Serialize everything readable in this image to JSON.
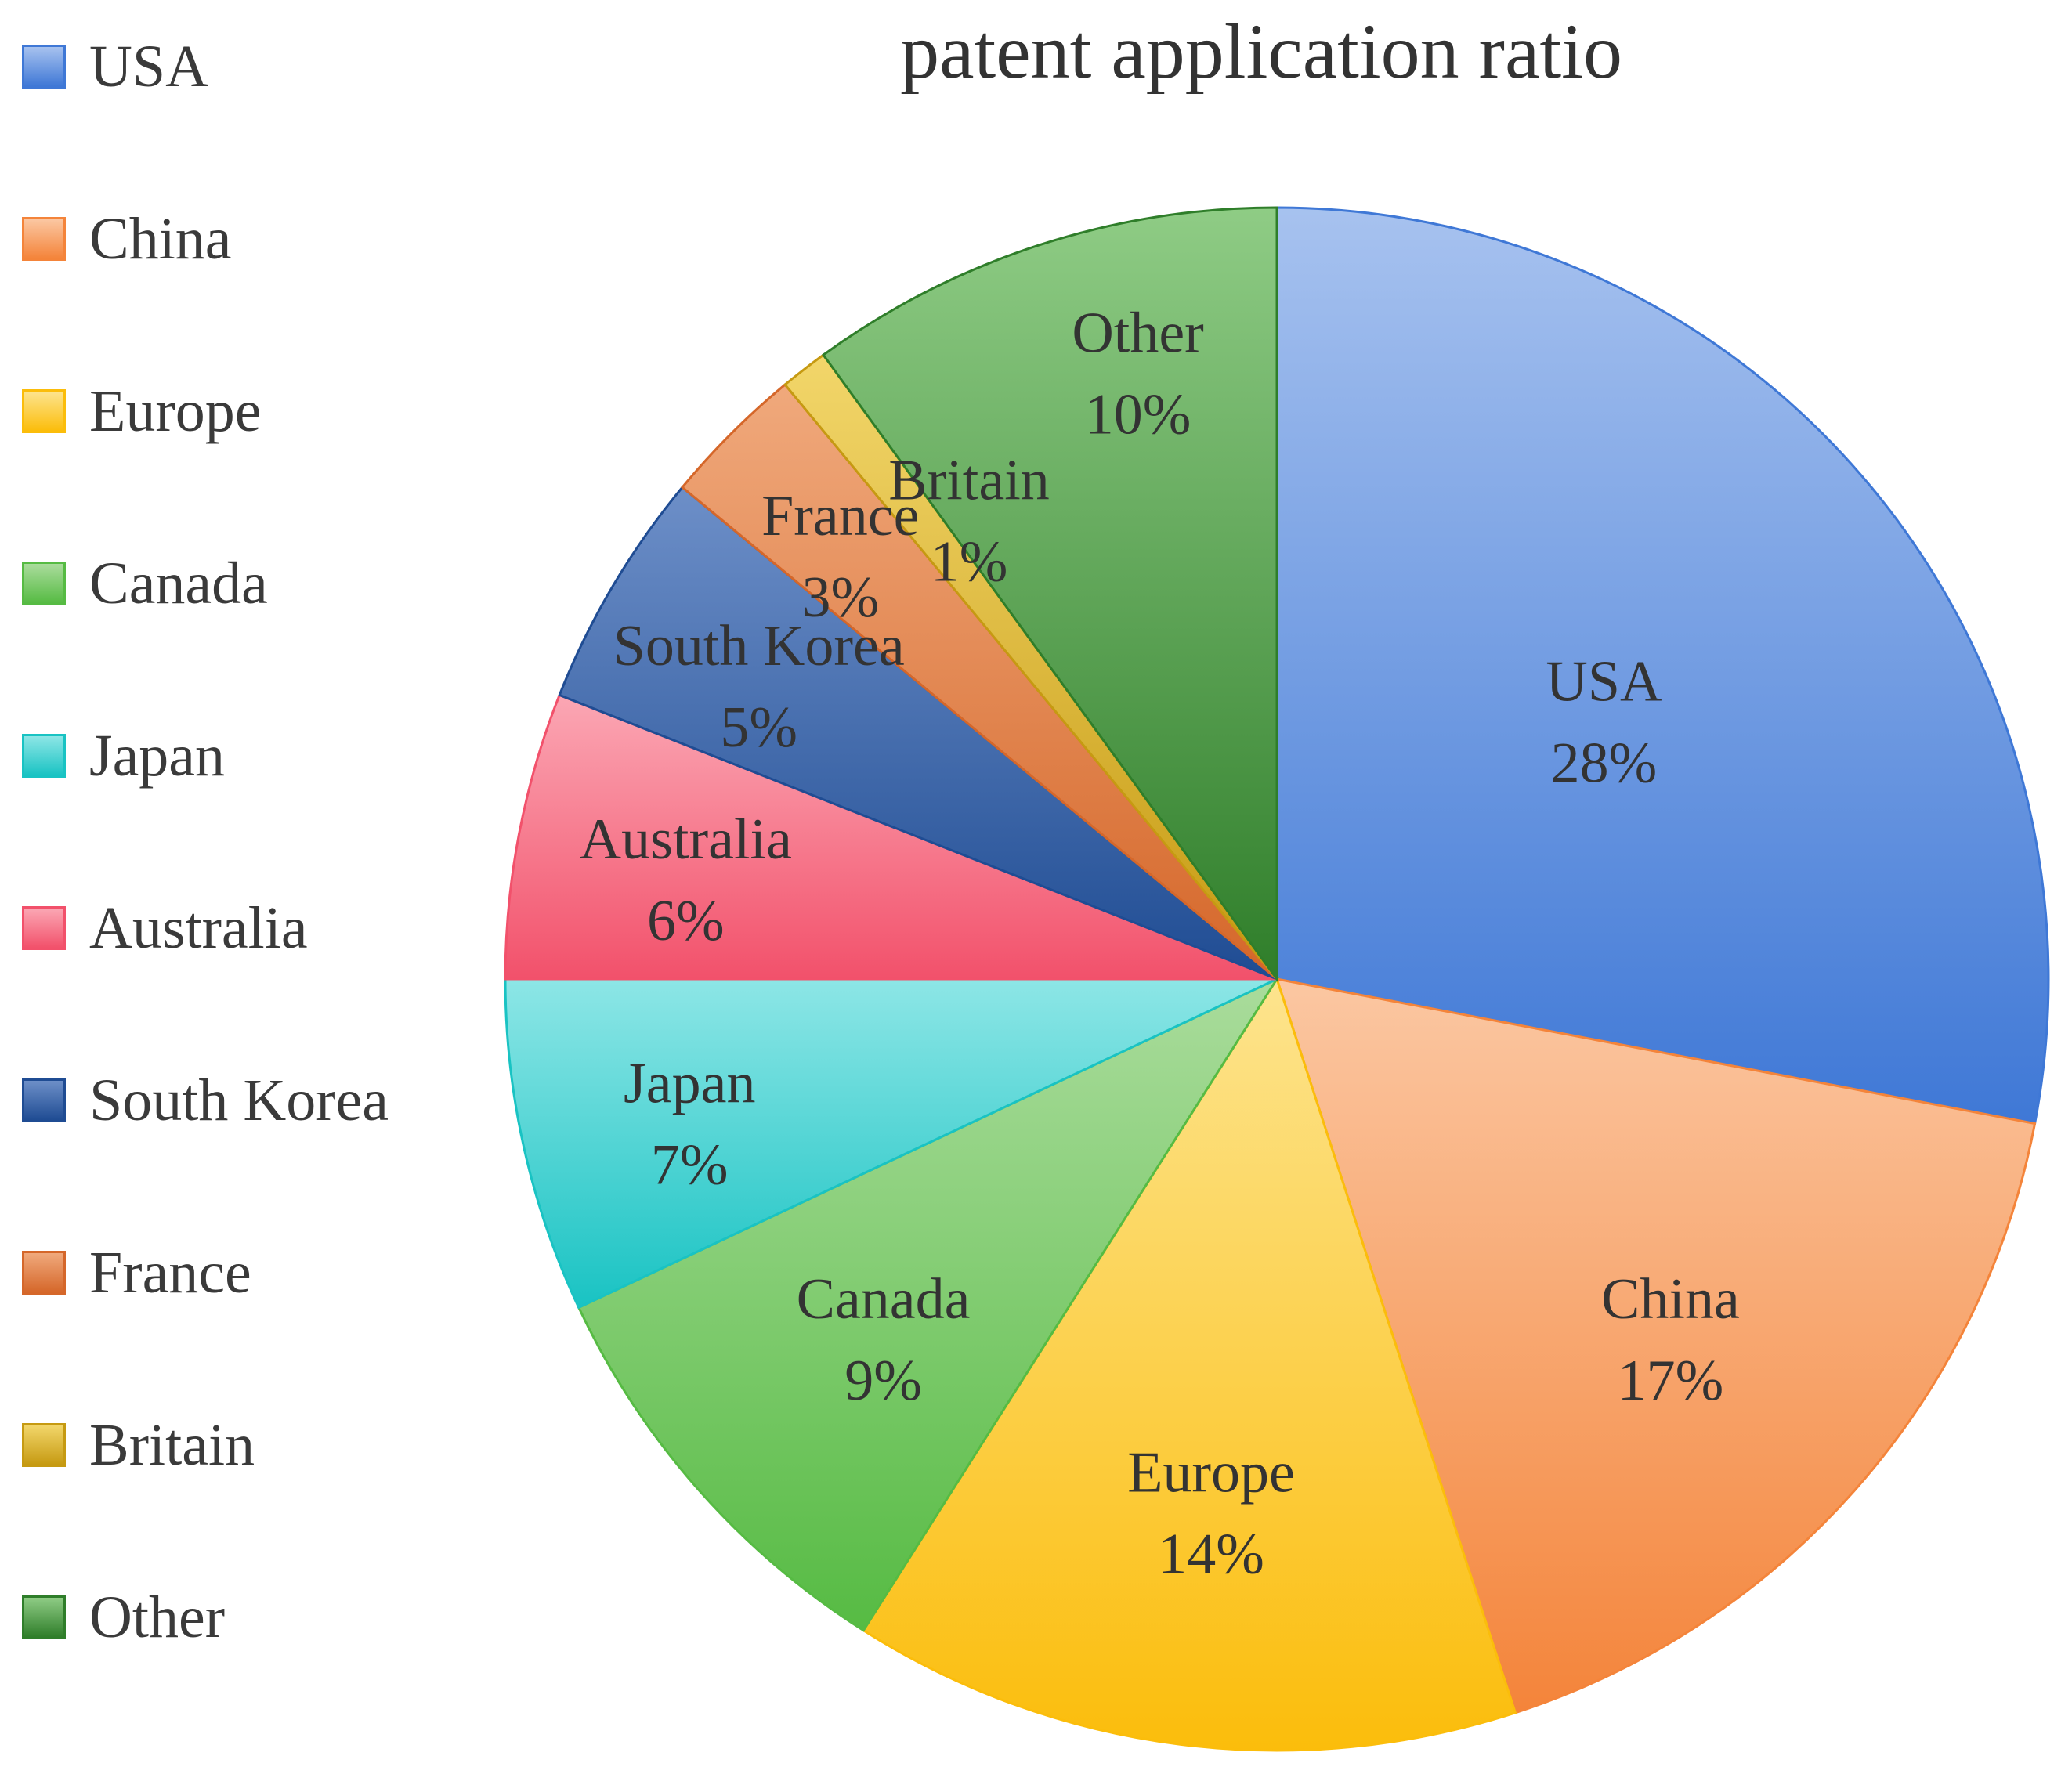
{
  "chart_data": {
    "type": "pie",
    "title": "patent application ratio",
    "legend_position": "left",
    "start_angle_deg": 0,
    "direction": "clockwise",
    "slices": [
      {
        "label": "USA",
        "value": 28,
        "display": "28%",
        "color": "#3f78d6",
        "color_light": "#a7c2ef"
      },
      {
        "label": "China",
        "value": 17,
        "display": "17%",
        "color": "#f4843a",
        "color_light": "#fbc7a2"
      },
      {
        "label": "Europe",
        "value": 14,
        "display": "14%",
        "color": "#fbbd0b",
        "color_light": "#fde48e"
      },
      {
        "label": "Canada",
        "value": 9,
        "display": "9%",
        "color": "#56bb43",
        "color_light": "#aadc9c"
      },
      {
        "label": "Japan",
        "value": 7,
        "display": "7%",
        "color": "#19c3c3",
        "color_light": "#8de6e6"
      },
      {
        "label": "Australia",
        "value": 6,
        "display": "6%",
        "color": "#f2516b",
        "color_light": "#fba7b4"
      },
      {
        "label": "South Korea",
        "value": 5,
        "display": "5%",
        "color": "#1f4c93",
        "color_light": "#6d8fc8"
      },
      {
        "label": "France",
        "value": 3,
        "display": "3%",
        "color": "#d5672a",
        "color_light": "#f0a97c"
      },
      {
        "label": "Britain",
        "value": 1,
        "display": "1%",
        "color": "#c69a12",
        "color_light": "#f2d66a"
      },
      {
        "label": "Other",
        "value": 10,
        "display": "10%",
        "color": "#2f7e2a",
        "color_light": "#8fcc85"
      }
    ]
  }
}
